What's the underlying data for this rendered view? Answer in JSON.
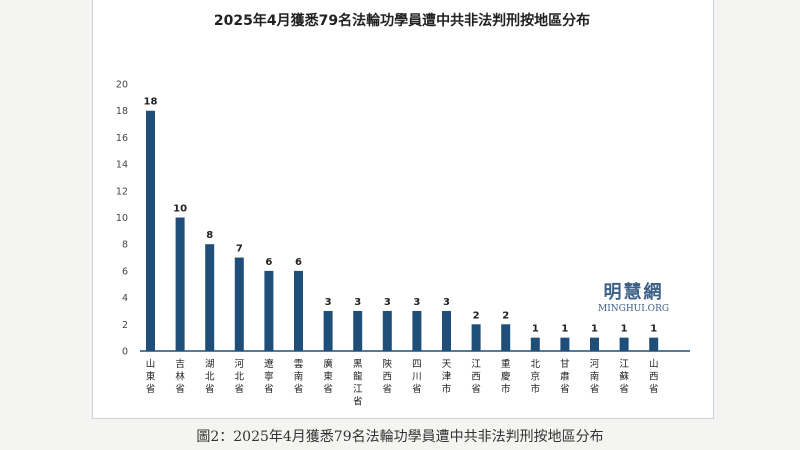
{
  "chart_data": {
    "type": "bar",
    "title": "2025年4月獲悉79名法輪功學員遭中共非法判刑按地區分布",
    "categories": [
      "山東省",
      "吉林省",
      "湖北省",
      "河北省",
      "遼寧省",
      "雲南省",
      "廣東省",
      "黑龍江省",
      "陝西省",
      "四川省",
      "天津市",
      "江西省",
      "重慶市",
      "北京市",
      "甘肅省",
      "河南省",
      "江蘇省",
      "山西省"
    ],
    "values": [
      18,
      10,
      8,
      7,
      6,
      6,
      3,
      3,
      3,
      3,
      3,
      2,
      2,
      1,
      1,
      1,
      1,
      1
    ],
    "ylim": [
      0,
      20
    ],
    "yticks": [
      0,
      2,
      4,
      6,
      8,
      10,
      12,
      14,
      16,
      18,
      20
    ],
    "xlabel": "",
    "ylabel": "",
    "bar_color": "#1f4e79",
    "grid": false
  },
  "watermark": {
    "name": "明慧網",
    "domain": "MINGHUI.ORG"
  },
  "caption": "圖2：2025年4月獲悉79名法輪功學員遭中共非法判刑按地區分布"
}
